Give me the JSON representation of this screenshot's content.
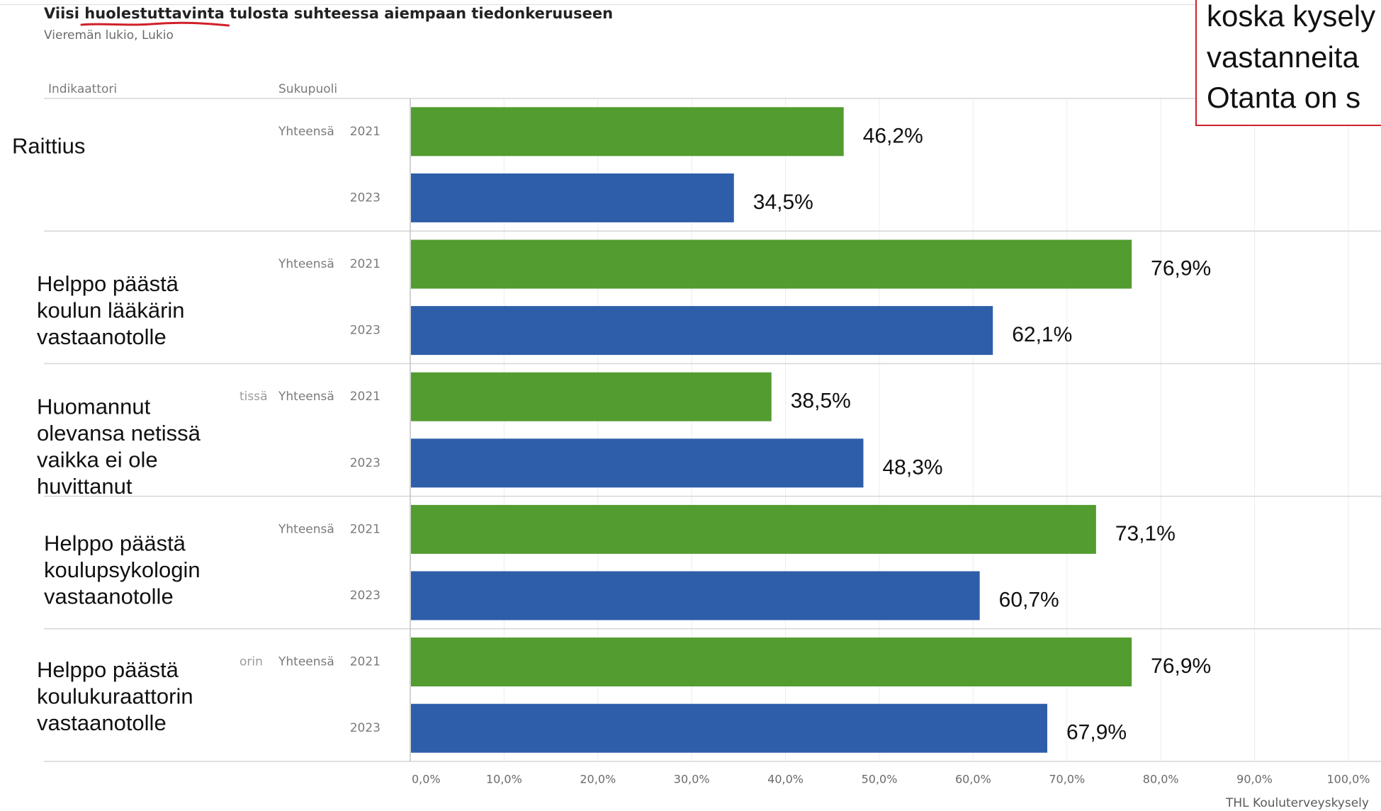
{
  "title": {
    "before": "Viisi ",
    "highlight": "huolestuttavinta",
    "after": " tulosta suhteessa aiempaan tiedonkeruuseen"
  },
  "subtitle": "Vieremän lukio, Lukio",
  "columns": {
    "indicator": "Indikaattori",
    "gender": "Sukupuoli"
  },
  "note_box": {
    "lines": [
      "koska kysely",
      "vastanneita",
      "Otanta on s"
    ]
  },
  "source": "THL Kouluterveyskysely",
  "colors": {
    "series_2021": "#529c30",
    "series_2023": "#2e5ea9",
    "annotation_red": "#d0202a"
  },
  "chart_data": {
    "type": "bar",
    "orientation": "horizontal",
    "categories": [
      [
        "Raittius"
      ],
      [
        "Helppo päästä",
        "koulun lääkärin",
        "vastaanotolle"
      ],
      [
        "Huomannut",
        "olevansa netissä",
        "vaikka ei ole",
        "huvittanut"
      ],
      [
        "Helppo päästä",
        "koulupsykologin",
        "vastaanotolle"
      ],
      [
        "Helppo päästä",
        "koulukuraattorin",
        "vastaanotolle"
      ]
    ],
    "covered_label_fragments": [
      {
        "category_index": 2,
        "text": "tissä"
      },
      {
        "category_index": 4,
        "text": "orin"
      }
    ],
    "gender": "Yhteensä",
    "series": [
      {
        "name": "2021",
        "values": [
          46.2,
          76.9,
          38.5,
          73.1,
          76.9
        ],
        "labels": [
          "46,2%",
          "76,9%",
          "38,5%",
          "73,1%",
          "76,9%"
        ]
      },
      {
        "name": "2023",
        "values": [
          34.5,
          62.1,
          48.3,
          60.7,
          67.9
        ],
        "labels": [
          "34,5%",
          "62,1%",
          "48,3%",
          "60,7%",
          "67,9%"
        ]
      }
    ],
    "xlim": [
      0,
      100
    ],
    "x_ticks": [
      0,
      10,
      20,
      30,
      40,
      50,
      60,
      70,
      80,
      90,
      100
    ],
    "x_tick_labels": [
      "0,0%",
      "10,0%",
      "20,0%",
      "30,0%",
      "40,0%",
      "50,0%",
      "60,0%",
      "70,0%",
      "80,0%",
      "90,0%",
      "100,0%"
    ],
    "grid": true,
    "legend": "none"
  }
}
